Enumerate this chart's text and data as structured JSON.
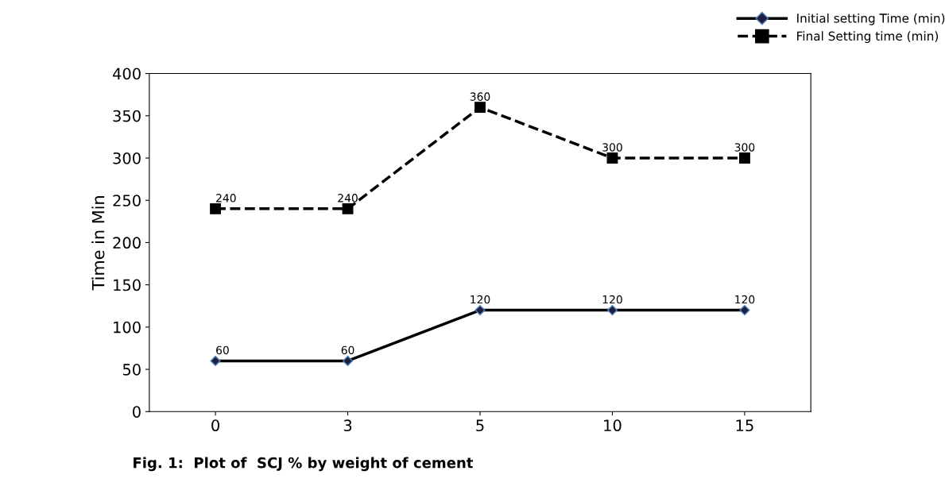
{
  "chart_data": {
    "type": "line",
    "ylabel": "Time in Min",
    "categories": [
      "0",
      "3",
      "5",
      "10",
      "15"
    ],
    "series": [
      {
        "name": "Initial setting Time (min)",
        "color": "#000000",
        "values": [
          60,
          60,
          120,
          120,
          120
        ],
        "marker": "diamond",
        "line_style": "solid"
      },
      {
        "name": "Final Setting time (min)",
        "color": "#000000",
        "values": [
          240,
          240,
          360,
          300,
          300
        ],
        "marker": "square",
        "line_style": "dashed"
      }
    ],
    "ylim": [
      0,
      400
    ],
    "yticks": [
      0,
      50,
      100,
      150,
      200,
      250,
      300,
      350,
      400
    ],
    "grid": false,
    "legend": "top right",
    "data_labels": true,
    "annotations": [
      "Fig. 1:  Plot of  SCJ % by weight of cement"
    ]
  }
}
